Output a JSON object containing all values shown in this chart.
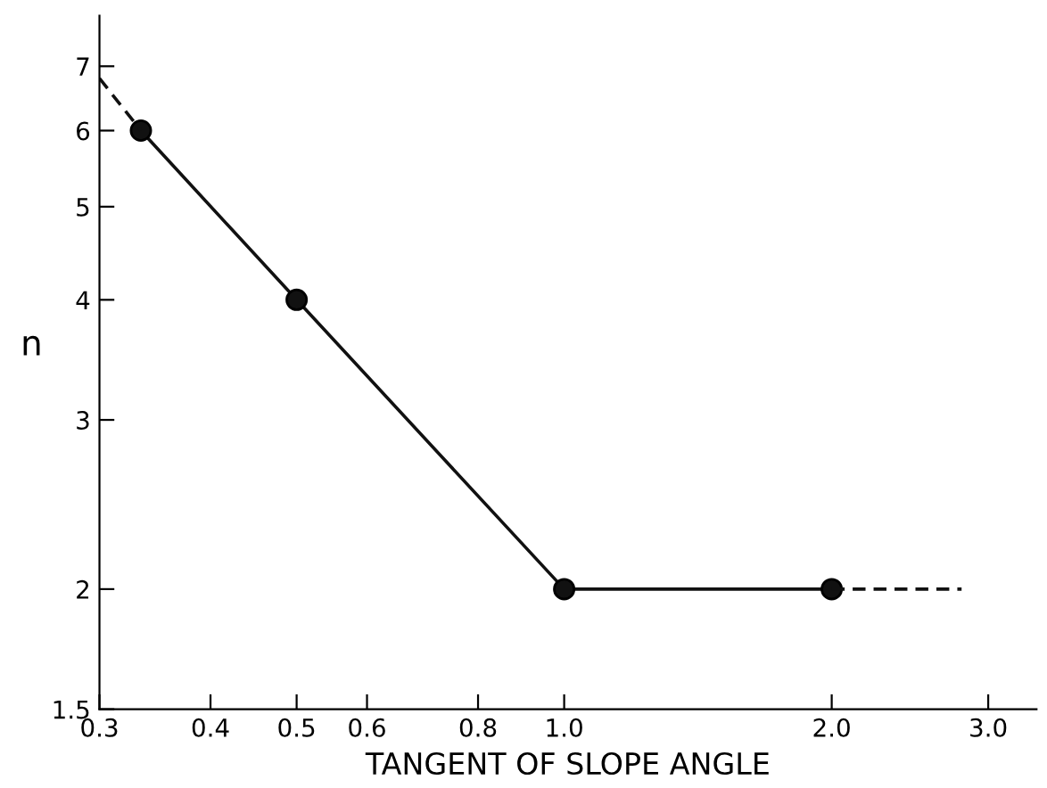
{
  "chart_data": {
    "type": "line",
    "xlabel": "TANGENT OF SLOPE ANGLE",
    "ylabel": "n",
    "log": "xy",
    "xlim": [
      0.3,
      3.4
    ],
    "ylim": [
      1.5,
      7.9
    ],
    "xticks": [
      {
        "value": 0.3,
        "label": "0.3"
      },
      {
        "value": 0.4,
        "label": "0.4"
      },
      {
        "value": 0.5,
        "label": "0.5"
      },
      {
        "value": 0.6,
        "label": "0.6"
      },
      {
        "value": 0.8,
        "label": "0.8"
      },
      {
        "value": 1.0,
        "label": "1.0"
      },
      {
        "value": 2.0,
        "label": "2.0"
      },
      {
        "value": 3.0,
        "label": "3.0"
      }
    ],
    "yticks": [
      1.5,
      2,
      3,
      4,
      5,
      6,
      7
    ],
    "grid": false,
    "legend": false,
    "series": [
      {
        "color": "#111111",
        "x": [
          0.334,
          0.5,
          1.0,
          2.0
        ],
        "values": [
          6,
          4,
          2,
          2
        ],
        "marker": "circle",
        "line_style": "solid"
      },
      {
        "color": "#111111",
        "x": [
          0.3,
          0.334
        ],
        "values": [
          6.8,
          6
        ],
        "marker": "none",
        "line_style": "dashed"
      },
      {
        "color": "#111111",
        "x": [
          2.0,
          2.8
        ],
        "values": [
          2,
          2
        ],
        "marker": "none",
        "line_style": "dashed"
      }
    ]
  }
}
